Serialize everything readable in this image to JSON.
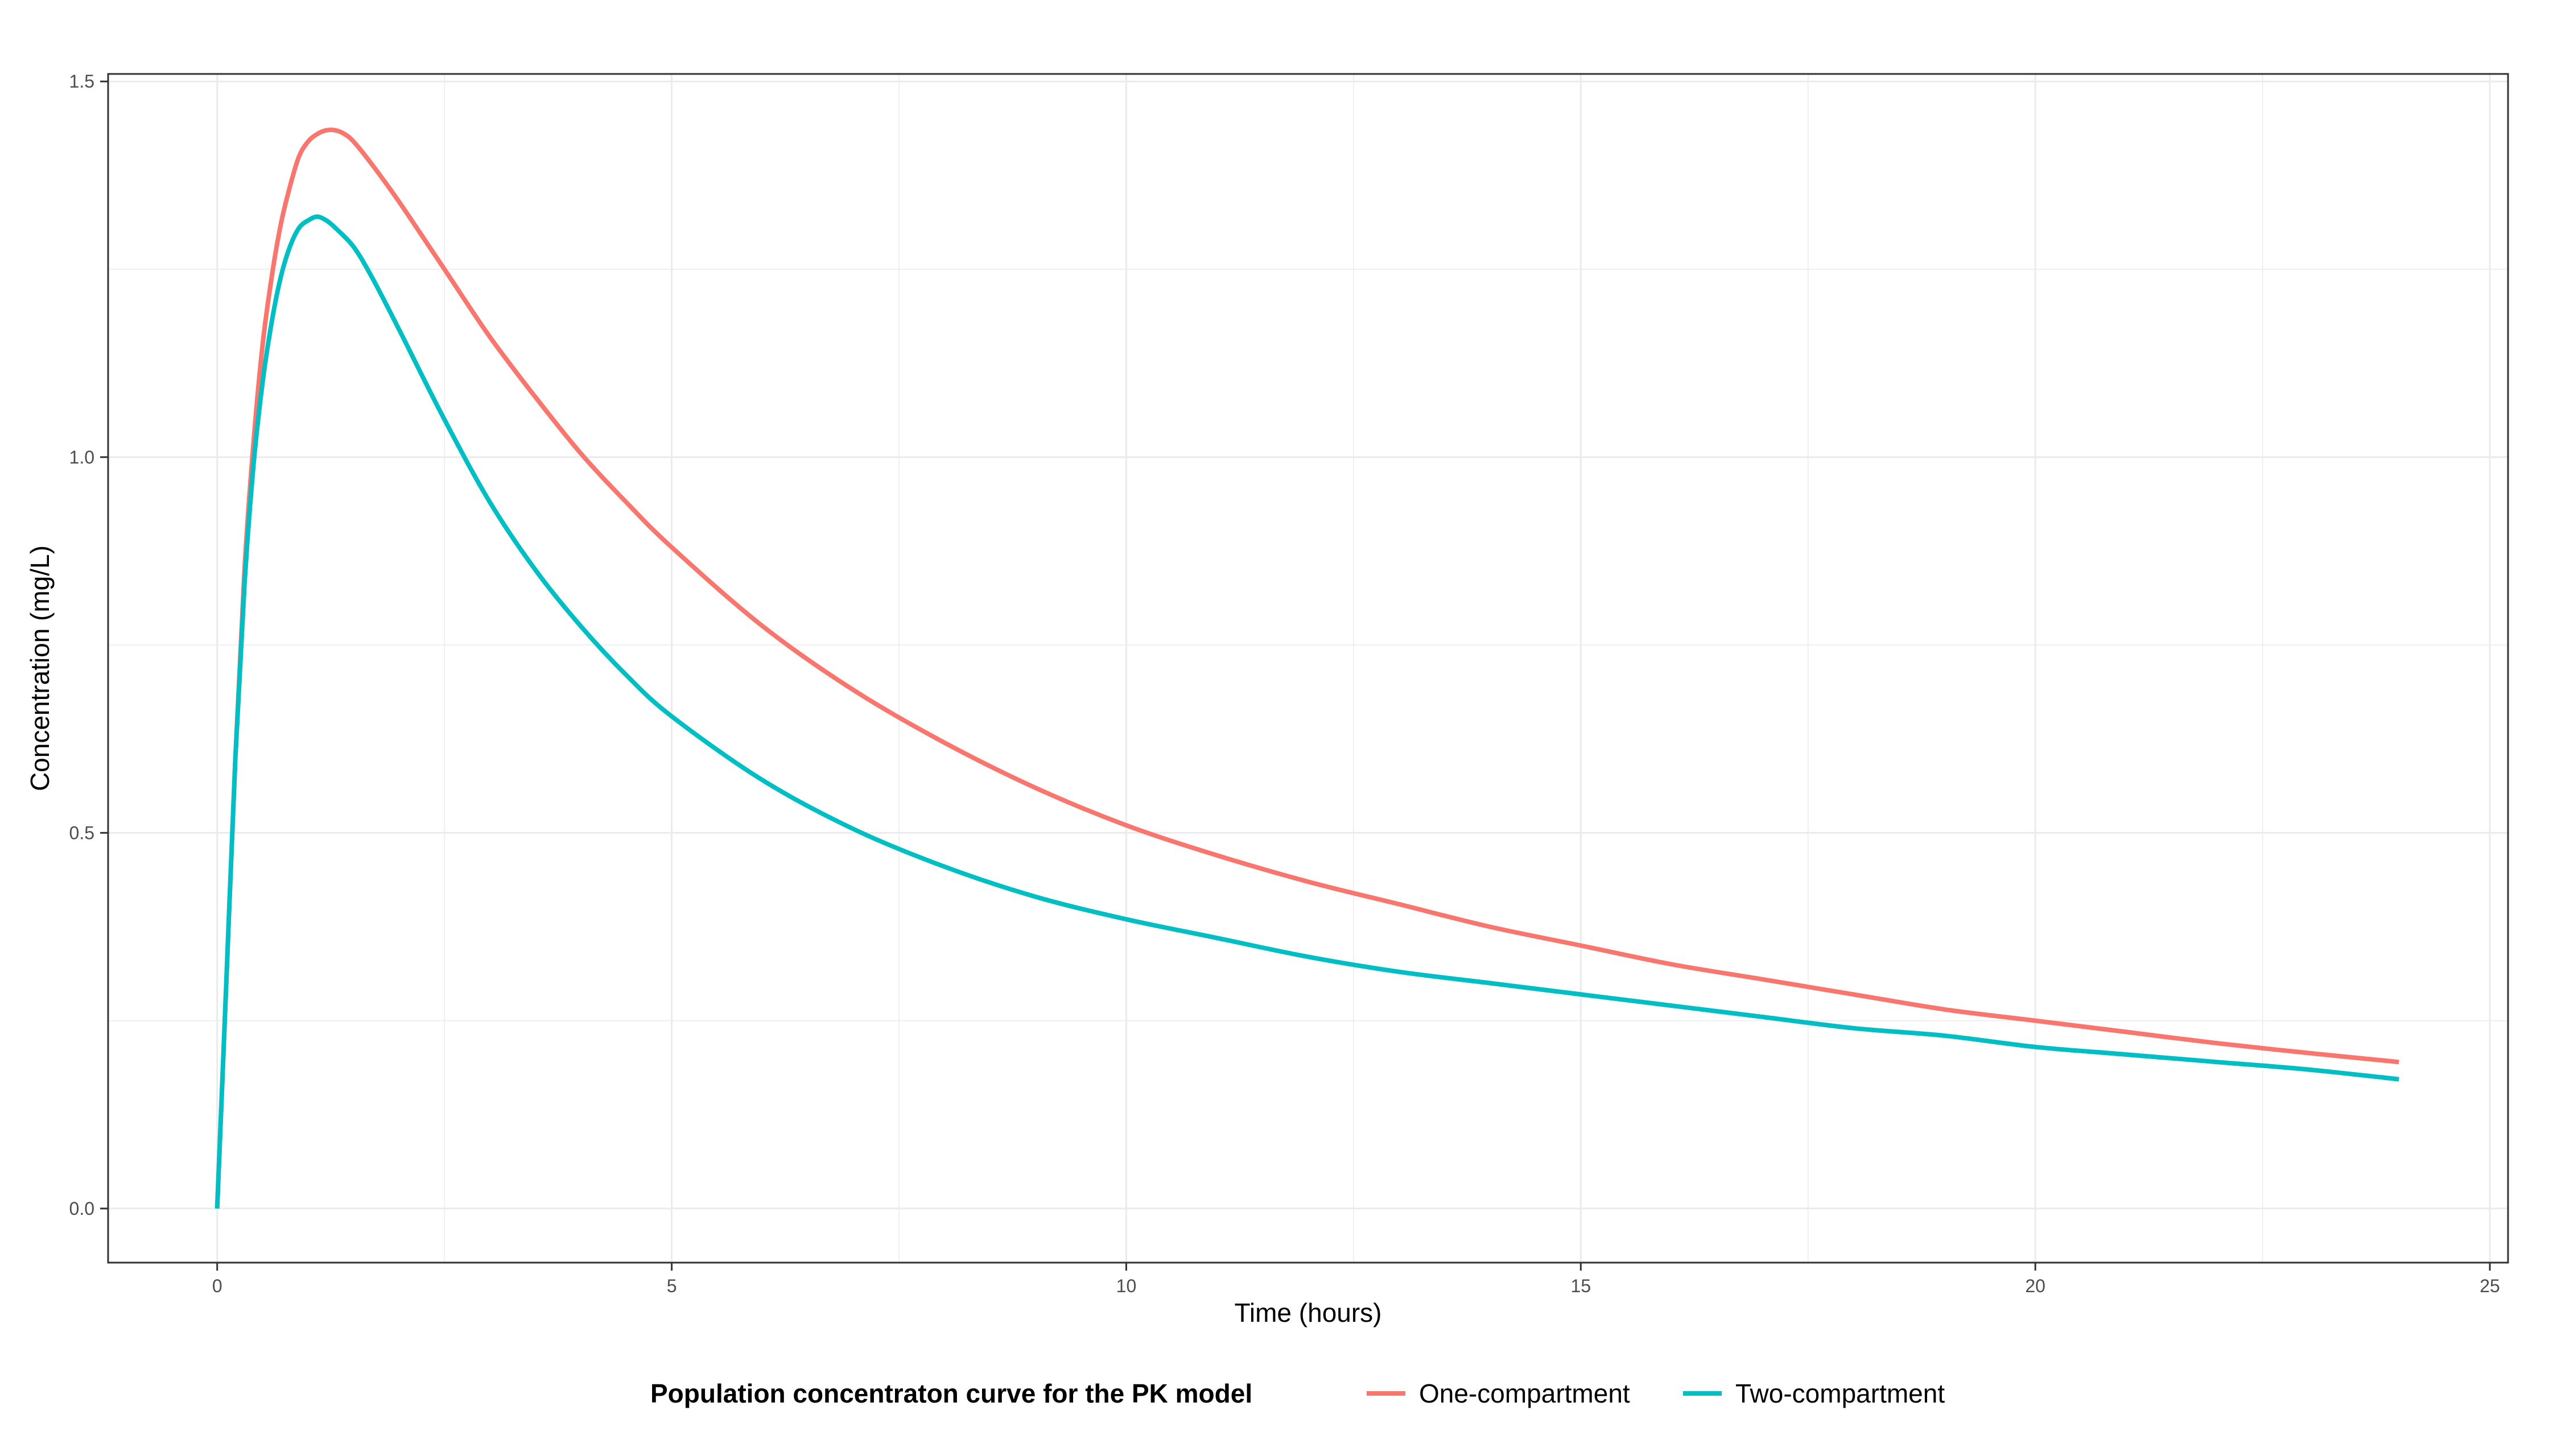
{
  "chart_data": {
    "type": "line",
    "xlabel": "Time (hours)",
    "ylabel": "Concentration (mg/L)",
    "xlim": [
      -1.2,
      25.2
    ],
    "ylim": [
      -0.072,
      1.51
    ],
    "xticks": [
      0,
      5,
      10,
      15,
      20,
      25
    ],
    "xtick_labels": [
      "0",
      "5",
      "10",
      "15",
      "20",
      "25"
    ],
    "yticks": [
      0.0,
      0.5,
      1.0,
      1.5
    ],
    "ytick_labels": [
      "0.0",
      "0.5",
      "1.0",
      "1.5"
    ],
    "grid": true,
    "legend": {
      "position": "bottom",
      "title": "Population concentraton curve for the PK model"
    },
    "series": [
      {
        "name": "One-compartment",
        "color": "#F8766D",
        "points": [
          [
            0,
            0
          ],
          [
            0.1,
            0.3
          ],
          [
            0.2,
            0.6
          ],
          [
            0.3,
            0.85
          ],
          [
            0.4,
            1.02
          ],
          [
            0.5,
            1.15
          ],
          [
            0.6,
            1.24
          ],
          [
            0.7,
            1.31
          ],
          [
            0.8,
            1.36
          ],
          [
            0.9,
            1.4
          ],
          [
            1.0,
            1.42
          ],
          [
            1.1,
            1.43
          ],
          [
            1.2,
            1.435
          ],
          [
            1.3,
            1.435
          ],
          [
            1.4,
            1.43
          ],
          [
            1.5,
            1.42
          ],
          [
            1.7,
            1.39
          ],
          [
            2.0,
            1.34
          ],
          [
            2.5,
            1.25
          ],
          [
            3.0,
            1.16
          ],
          [
            3.5,
            1.08
          ],
          [
            4.0,
            1.005
          ],
          [
            4.5,
            0.94
          ],
          [
            5.0,
            0.88
          ],
          [
            6.0,
            0.775
          ],
          [
            7.0,
            0.69
          ],
          [
            8.0,
            0.62
          ],
          [
            9.0,
            0.56
          ],
          [
            10.0,
            0.51
          ],
          [
            11.0,
            0.47
          ],
          [
            12.0,
            0.435
          ],
          [
            13.0,
            0.405
          ],
          [
            14.0,
            0.375
          ],
          [
            15.0,
            0.35
          ],
          [
            16.0,
            0.325
          ],
          [
            17.0,
            0.305
          ],
          [
            18.0,
            0.285
          ],
          [
            19.0,
            0.265
          ],
          [
            20.0,
            0.25
          ],
          [
            21.0,
            0.235
          ],
          [
            22.0,
            0.22
          ],
          [
            23.0,
            0.207
          ],
          [
            24.0,
            0.195
          ]
        ]
      },
      {
        "name": "Two-compartment",
        "color": "#00BFC4",
        "points": [
          [
            0,
            0
          ],
          [
            0.1,
            0.3
          ],
          [
            0.2,
            0.6
          ],
          [
            0.3,
            0.83
          ],
          [
            0.4,
            0.99
          ],
          [
            0.5,
            1.1
          ],
          [
            0.6,
            1.18
          ],
          [
            0.7,
            1.24
          ],
          [
            0.8,
            1.28
          ],
          [
            0.9,
            1.305
          ],
          [
            1.0,
            1.315
          ],
          [
            1.1,
            1.32
          ],
          [
            1.2,
            1.315
          ],
          [
            1.3,
            1.305
          ],
          [
            1.5,
            1.28
          ],
          [
            1.7,
            1.24
          ],
          [
            2.0,
            1.17
          ],
          [
            2.5,
            1.05
          ],
          [
            3.0,
            0.94
          ],
          [
            3.5,
            0.85
          ],
          [
            4.0,
            0.775
          ],
          [
            4.5,
            0.71
          ],
          [
            5.0,
            0.655
          ],
          [
            6.0,
            0.57
          ],
          [
            7.0,
            0.505
          ],
          [
            8.0,
            0.455
          ],
          [
            9.0,
            0.415
          ],
          [
            10.0,
            0.385
          ],
          [
            11.0,
            0.36
          ],
          [
            12.0,
            0.335
          ],
          [
            13.0,
            0.315
          ],
          [
            14.0,
            0.3
          ],
          [
            15.0,
            0.285
          ],
          [
            16.0,
            0.27
          ],
          [
            17.0,
            0.255
          ],
          [
            18.0,
            0.24
          ],
          [
            19.0,
            0.23
          ],
          [
            20.0,
            0.215
          ],
          [
            21.0,
            0.205
          ],
          [
            22.0,
            0.195
          ],
          [
            23.0,
            0.185
          ],
          [
            24.0,
            0.172
          ]
        ]
      }
    ]
  }
}
